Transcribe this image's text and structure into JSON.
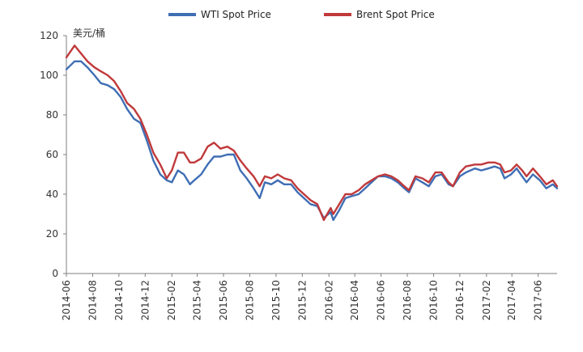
{
  "chart_data": {
    "type": "line",
    "ylabel": "美元/桶",
    "ylim": [
      0,
      120
    ],
    "yticks": [
      0,
      20,
      40,
      60,
      80,
      100,
      120
    ],
    "xlim": [
      "2014-06",
      "2017-07-15"
    ],
    "xticks": [
      "2014-06",
      "2014-08",
      "2014-10",
      "2014-12",
      "2015-02",
      "2015-04",
      "2015-06",
      "2015-08",
      "2015-10",
      "2015-12",
      "2016-02",
      "2016-04",
      "2016-06",
      "2016-08",
      "2016-10",
      "2016-12",
      "2017-02",
      "2017-04",
      "2017-06"
    ],
    "legend_position": "top",
    "grid": false,
    "series": [
      {
        "name": "WTI Spot Price",
        "color": "#3F6EB4",
        "points": [
          [
            "2014-06-01",
            103
          ],
          [
            "2014-06-20",
            107
          ],
          [
            "2014-07-05",
            107
          ],
          [
            "2014-07-20",
            104
          ],
          [
            "2014-08-05",
            100
          ],
          [
            "2014-08-20",
            96
          ],
          [
            "2014-09-05",
            95
          ],
          [
            "2014-09-20",
            93
          ],
          [
            "2014-10-05",
            89
          ],
          [
            "2014-10-20",
            83
          ],
          [
            "2014-11-05",
            78
          ],
          [
            "2014-11-20",
            76
          ],
          [
            "2014-12-05",
            67
          ],
          [
            "2014-12-20",
            57
          ],
          [
            "2015-01-05",
            50
          ],
          [
            "2015-01-20",
            47
          ],
          [
            "2015-02-01",
            46
          ],
          [
            "2015-02-15",
            52
          ],
          [
            "2015-03-01",
            50
          ],
          [
            "2015-03-15",
            45
          ],
          [
            "2015-03-25",
            47
          ],
          [
            "2015-04-10",
            50
          ],
          [
            "2015-04-25",
            55
          ],
          [
            "2015-05-10",
            59
          ],
          [
            "2015-05-25",
            59
          ],
          [
            "2015-06-10",
            60
          ],
          [
            "2015-06-25",
            60
          ],
          [
            "2015-07-10",
            52
          ],
          [
            "2015-07-25",
            48
          ],
          [
            "2015-08-10",
            43
          ],
          [
            "2015-08-24",
            38
          ],
          [
            "2015-09-05",
            46
          ],
          [
            "2015-09-20",
            45
          ],
          [
            "2015-10-05",
            47
          ],
          [
            "2015-10-20",
            45
          ],
          [
            "2015-11-05",
            45
          ],
          [
            "2015-11-20",
            41
          ],
          [
            "2015-12-05",
            38
          ],
          [
            "2015-12-20",
            35
          ],
          [
            "2016-01-05",
            34
          ],
          [
            "2016-01-20",
            28
          ],
          [
            "2016-02-05",
            31
          ],
          [
            "2016-02-11",
            27
          ],
          [
            "2016-02-25",
            32
          ],
          [
            "2016-03-10",
            38
          ],
          [
            "2016-03-25",
            39
          ],
          [
            "2016-04-10",
            40
          ],
          [
            "2016-04-25",
            43
          ],
          [
            "2016-05-10",
            46
          ],
          [
            "2016-05-25",
            49
          ],
          [
            "2016-06-10",
            49
          ],
          [
            "2016-06-25",
            48
          ],
          [
            "2016-07-10",
            46
          ],
          [
            "2016-07-25",
            43
          ],
          [
            "2016-08-05",
            41
          ],
          [
            "2016-08-20",
            48
          ],
          [
            "2016-09-05",
            46
          ],
          [
            "2016-09-20",
            44
          ],
          [
            "2016-10-05",
            49
          ],
          [
            "2016-10-20",
            50
          ],
          [
            "2016-11-05",
            45
          ],
          [
            "2016-11-15",
            44
          ],
          [
            "2016-12-01",
            49
          ],
          [
            "2016-12-15",
            51
          ],
          [
            "2017-01-05",
            53
          ],
          [
            "2017-01-20",
            52
          ],
          [
            "2017-02-05",
            53
          ],
          [
            "2017-02-20",
            54
          ],
          [
            "2017-03-05",
            53
          ],
          [
            "2017-03-15",
            48
          ],
          [
            "2017-03-30",
            50
          ],
          [
            "2017-04-12",
            53
          ],
          [
            "2017-04-25",
            49
          ],
          [
            "2017-05-05",
            46
          ],
          [
            "2017-05-20",
            50
          ],
          [
            "2017-06-05",
            47
          ],
          [
            "2017-06-20",
            43
          ],
          [
            "2017-07-05",
            45
          ],
          [
            "2017-07-15",
            43
          ]
        ]
      },
      {
        "name": "Brent Spot Price",
        "color": "#C0393B",
        "points": [
          [
            "2014-06-01",
            109
          ],
          [
            "2014-06-20",
            115
          ],
          [
            "2014-07-05",
            111
          ],
          [
            "2014-07-20",
            107
          ],
          [
            "2014-08-05",
            104
          ],
          [
            "2014-08-20",
            102
          ],
          [
            "2014-09-05",
            100
          ],
          [
            "2014-09-20",
            97
          ],
          [
            "2014-10-05",
            92
          ],
          [
            "2014-10-20",
            86
          ],
          [
            "2014-11-05",
            83
          ],
          [
            "2014-11-20",
            78
          ],
          [
            "2014-12-05",
            70
          ],
          [
            "2014-12-20",
            61
          ],
          [
            "2015-01-05",
            55
          ],
          [
            "2015-01-20",
            48
          ],
          [
            "2015-02-01",
            52
          ],
          [
            "2015-02-15",
            61
          ],
          [
            "2015-03-01",
            61
          ],
          [
            "2015-03-15",
            56
          ],
          [
            "2015-03-25",
            56
          ],
          [
            "2015-04-10",
            58
          ],
          [
            "2015-04-25",
            64
          ],
          [
            "2015-05-10",
            66
          ],
          [
            "2015-05-25",
            63
          ],
          [
            "2015-06-10",
            64
          ],
          [
            "2015-06-25",
            62
          ],
          [
            "2015-07-10",
            57
          ],
          [
            "2015-07-25",
            53
          ],
          [
            "2015-08-10",
            49
          ],
          [
            "2015-08-24",
            44
          ],
          [
            "2015-09-05",
            49
          ],
          [
            "2015-09-20",
            48
          ],
          [
            "2015-10-05",
            50
          ],
          [
            "2015-10-20",
            48
          ],
          [
            "2015-11-05",
            47
          ],
          [
            "2015-11-20",
            43
          ],
          [
            "2015-12-05",
            40
          ],
          [
            "2015-12-20",
            37
          ],
          [
            "2016-01-05",
            35
          ],
          [
            "2016-01-20",
            27
          ],
          [
            "2016-02-05",
            33
          ],
          [
            "2016-02-11",
            30
          ],
          [
            "2016-02-25",
            35
          ],
          [
            "2016-03-10",
            40
          ],
          [
            "2016-03-25",
            40
          ],
          [
            "2016-04-10",
            42
          ],
          [
            "2016-04-25",
            45
          ],
          [
            "2016-05-10",
            47
          ],
          [
            "2016-05-25",
            49
          ],
          [
            "2016-06-10",
            50
          ],
          [
            "2016-06-25",
            49
          ],
          [
            "2016-07-10",
            47
          ],
          [
            "2016-07-25",
            44
          ],
          [
            "2016-08-05",
            42
          ],
          [
            "2016-08-20",
            49
          ],
          [
            "2016-09-05",
            48
          ],
          [
            "2016-09-20",
            46
          ],
          [
            "2016-10-05",
            51
          ],
          [
            "2016-10-20",
            51
          ],
          [
            "2016-11-05",
            46
          ],
          [
            "2016-11-15",
            44
          ],
          [
            "2016-12-01",
            51
          ],
          [
            "2016-12-15",
            54
          ],
          [
            "2017-01-05",
            55
          ],
          [
            "2017-01-20",
            55
          ],
          [
            "2017-02-05",
            56
          ],
          [
            "2017-02-20",
            56
          ],
          [
            "2017-03-05",
            55
          ],
          [
            "2017-03-15",
            51
          ],
          [
            "2017-03-30",
            52
          ],
          [
            "2017-04-12",
            55
          ],
          [
            "2017-04-25",
            52
          ],
          [
            "2017-05-05",
            49
          ],
          [
            "2017-05-20",
            53
          ],
          [
            "2017-06-05",
            49
          ],
          [
            "2017-06-20",
            45
          ],
          [
            "2017-07-05",
            47
          ],
          [
            "2017-07-15",
            44
          ]
        ]
      }
    ]
  }
}
